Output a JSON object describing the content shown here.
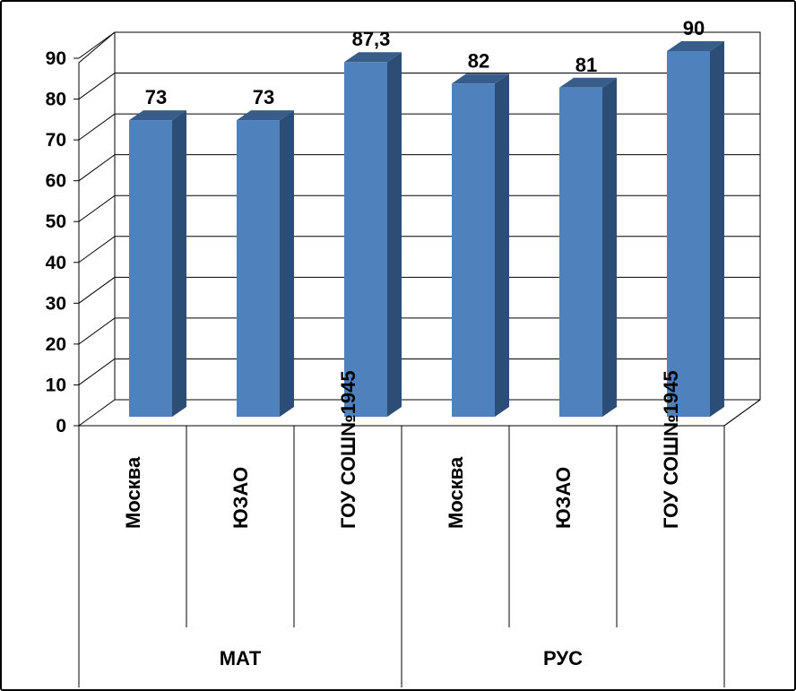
{
  "chart_data": {
    "type": "bar",
    "style": "3d-column",
    "groups": [
      {
        "label": "МАТ",
        "categories": [
          "Москва",
          "ЮЗАО",
          "ГОУ СОШ№1945"
        ]
      },
      {
        "label": "РУС",
        "categories": [
          "Москва",
          "ЮЗАО",
          "ГОУ СОШ№1945"
        ]
      }
    ],
    "values": [
      73,
      73,
      87.3,
      82,
      81,
      90
    ],
    "data_labels": [
      "73",
      "73",
      "87,3",
      "82",
      "81",
      "90"
    ],
    "ylim": [
      0,
      90
    ],
    "yticks": [
      0,
      10,
      20,
      30,
      40,
      50,
      60,
      70,
      80,
      90
    ],
    "grid": true,
    "legend": "none",
    "colors": {
      "bar_front": "#4f81bd",
      "bar_side": "#2c4d75",
      "bar_top": "#385d8a",
      "grid": "#000000"
    }
  }
}
